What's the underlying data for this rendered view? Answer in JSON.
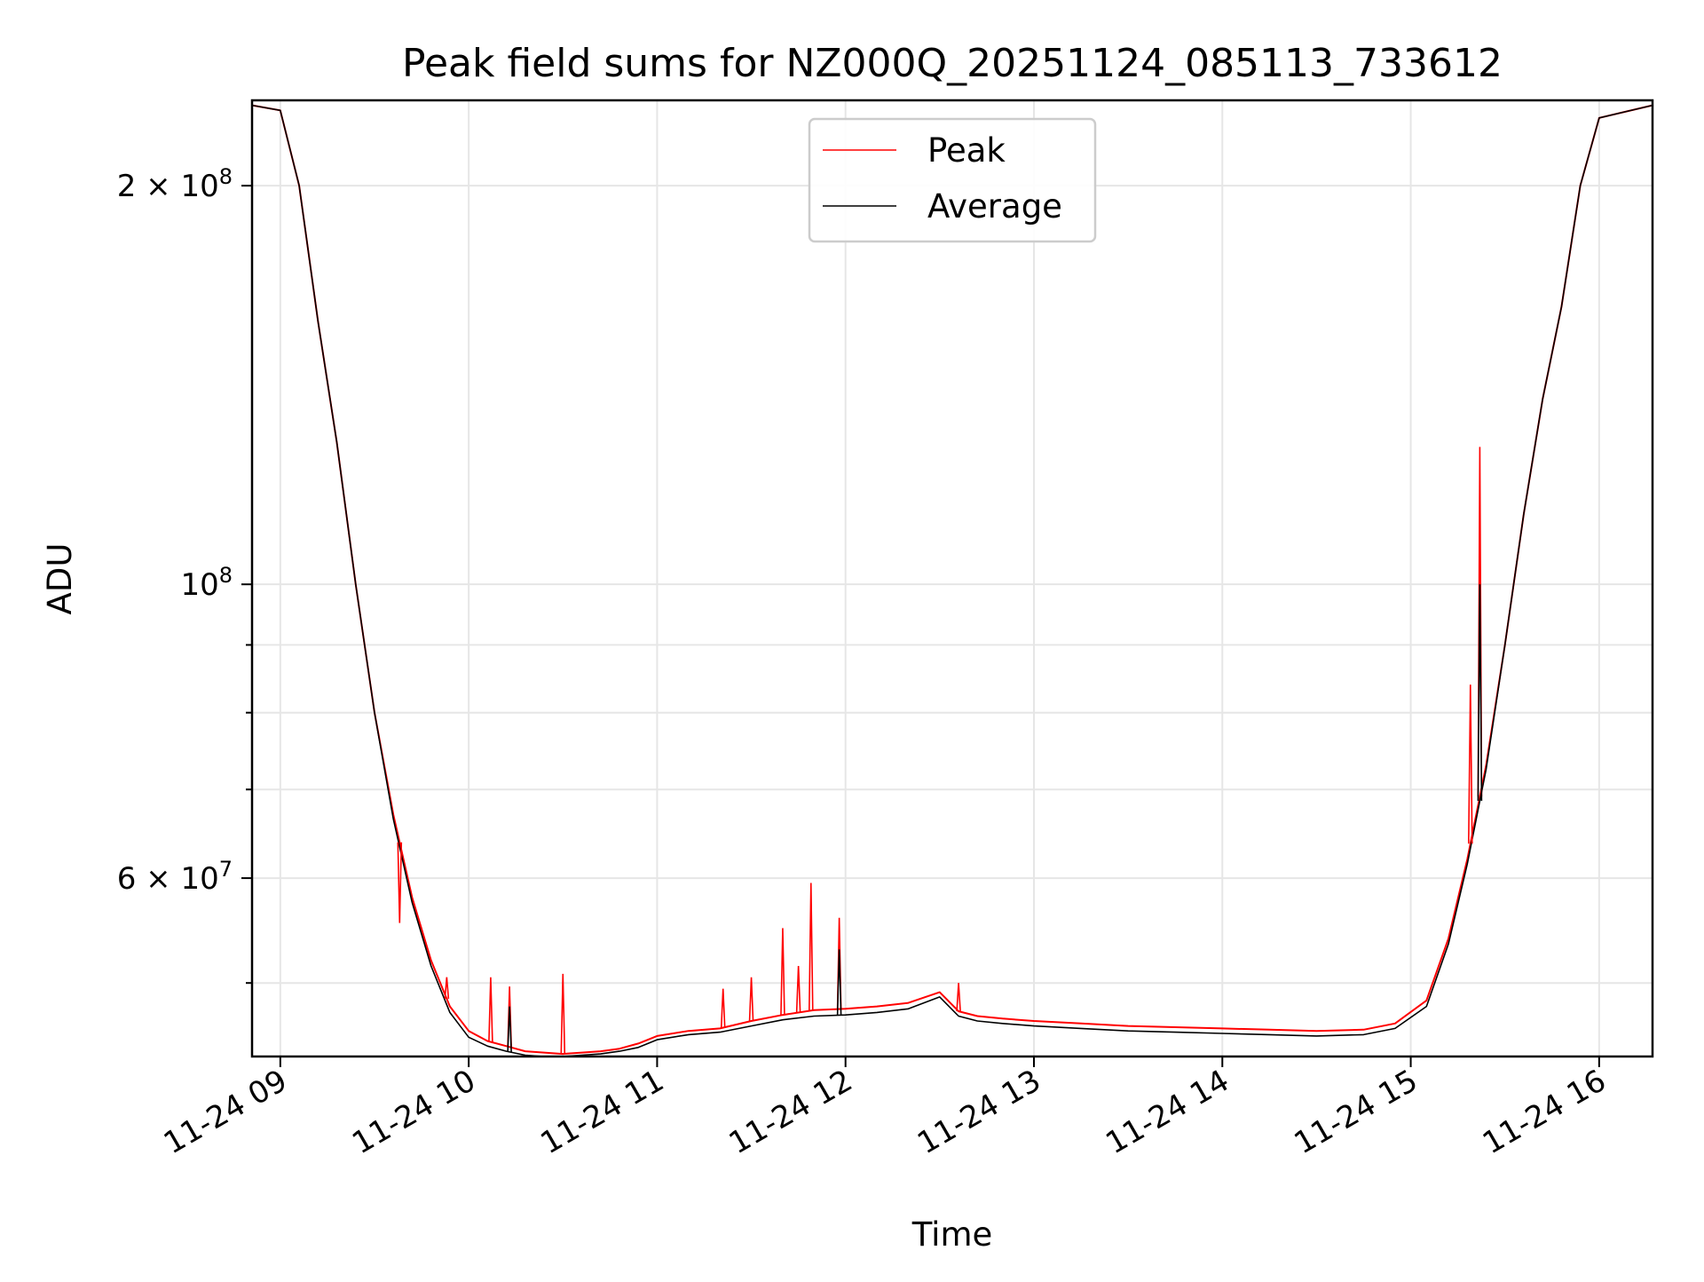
{
  "chart_data": {
    "type": "line",
    "title": "Peak field sums for NZ000Q_20251124_085113_733612",
    "xlabel": "Time",
    "ylabel": "ADU",
    "yscale": "log",
    "grid": true,
    "legend_position": "top-center",
    "xlim": [
      "2025-11-24 08:51",
      "2025-11-24 16:17"
    ],
    "ylim": [
      44000000,
      232000000
    ],
    "x_ticks": [
      {
        "value": "2025-11-24 09:00",
        "label": "11-24 09"
      },
      {
        "value": "2025-11-24 10:00",
        "label": "11-24 10"
      },
      {
        "value": "2025-11-24 11:00",
        "label": "11-24 11"
      },
      {
        "value": "2025-11-24 12:00",
        "label": "11-24 12"
      },
      {
        "value": "2025-11-24 13:00",
        "label": "11-24 13"
      },
      {
        "value": "2025-11-24 14:00",
        "label": "11-24 14"
      },
      {
        "value": "2025-11-24 15:00",
        "label": "11-24 15"
      },
      {
        "value": "2025-11-24 16:00",
        "label": "11-24 16"
      }
    ],
    "y_major_ticks": [
      {
        "value": 60000000,
        "mantissa": "6",
        "exponent": "7"
      },
      {
        "value": 100000000,
        "mantissa": "",
        "exponent": "8"
      },
      {
        "value": 200000000,
        "mantissa": "2",
        "exponent": "8"
      }
    ],
    "y_minor_ticks": [
      50000000,
      70000000,
      80000000,
      90000000
    ],
    "series": [
      {
        "name": "Peak",
        "color": "#ff0000",
        "x": [
          "2025-11-24 08:51",
          "2025-11-24 09:00",
          "2025-11-24 09:06",
          "2025-11-24 09:12",
          "2025-11-24 09:18",
          "2025-11-24 09:24",
          "2025-11-24 09:30",
          "2025-11-24 09:36",
          "2025-11-24 09:42",
          "2025-11-24 09:48",
          "2025-11-24 09:54",
          "2025-11-24 10:00",
          "2025-11-24 10:06",
          "2025-11-24 10:12",
          "2025-11-24 10:18",
          "2025-11-24 10:24",
          "2025-11-24 10:30",
          "2025-11-24 10:36",
          "2025-11-24 10:42",
          "2025-11-24 10:48",
          "2025-11-24 10:54",
          "2025-11-24 11:00",
          "2025-11-24 11:10",
          "2025-11-24 11:20",
          "2025-11-24 11:30",
          "2025-11-24 11:40",
          "2025-11-24 11:50",
          "2025-11-24 12:00",
          "2025-11-24 12:10",
          "2025-11-24 12:20",
          "2025-11-24 12:30",
          "2025-11-24 12:36",
          "2025-11-24 12:42",
          "2025-11-24 12:50",
          "2025-11-24 13:00",
          "2025-11-24 13:15",
          "2025-11-24 13:30",
          "2025-11-24 13:45",
          "2025-11-24 14:00",
          "2025-11-24 14:15",
          "2025-11-24 14:30",
          "2025-11-24 14:45",
          "2025-11-24 14:55",
          "2025-11-24 15:05",
          "2025-11-24 15:12",
          "2025-11-24 15:18",
          "2025-11-24 15:24",
          "2025-11-24 15:30",
          "2025-11-24 15:36",
          "2025-11-24 15:42",
          "2025-11-24 15:48",
          "2025-11-24 15:54",
          "2025-11-24 16:00",
          "2025-11-24 16:17"
        ],
        "y": [
          230000000,
          228000000,
          200000000,
          158000000,
          128000000,
          100000000,
          80000000,
          67000000,
          58000000,
          52000000,
          48000000,
          46000000,
          45200000,
          44800000,
          44400000,
          44300000,
          44200000,
          44300000,
          44400000,
          44600000,
          45000000,
          45600000,
          46000000,
          46200000,
          46800000,
          47300000,
          47700000,
          47800000,
          48000000,
          48300000,
          49200000,
          47600000,
          47200000,
          47000000,
          46800000,
          46600000,
          46400000,
          46300000,
          46200000,
          46100000,
          46000000,
          46100000,
          46600000,
          48500000,
          54000000,
          62000000,
          73000000,
          90000000,
          113000000,
          138000000,
          162000000,
          200000000,
          225000000,
          230000000
        ]
      },
      {
        "name": "Average",
        "color": "#000000",
        "x": [
          "2025-11-24 08:51",
          "2025-11-24 09:00",
          "2025-11-24 09:06",
          "2025-11-24 09:12",
          "2025-11-24 09:18",
          "2025-11-24 09:24",
          "2025-11-24 09:30",
          "2025-11-24 09:36",
          "2025-11-24 09:42",
          "2025-11-24 09:48",
          "2025-11-24 09:54",
          "2025-11-24 10:00",
          "2025-11-24 10:06",
          "2025-11-24 10:12",
          "2025-11-24 10:18",
          "2025-11-24 10:24",
          "2025-11-24 10:30",
          "2025-11-24 10:36",
          "2025-11-24 10:42",
          "2025-11-24 10:48",
          "2025-11-24 10:54",
          "2025-11-24 11:00",
          "2025-11-24 11:10",
          "2025-11-24 11:20",
          "2025-11-24 11:30",
          "2025-11-24 11:40",
          "2025-11-24 11:50",
          "2025-11-24 12:00",
          "2025-11-24 12:10",
          "2025-11-24 12:20",
          "2025-11-24 12:30",
          "2025-11-24 12:36",
          "2025-11-24 12:42",
          "2025-11-24 12:50",
          "2025-11-24 13:00",
          "2025-11-24 13:15",
          "2025-11-24 13:30",
          "2025-11-24 13:45",
          "2025-11-24 14:00",
          "2025-11-24 14:15",
          "2025-11-24 14:30",
          "2025-11-24 14:45",
          "2025-11-24 14:55",
          "2025-11-24 15:05",
          "2025-11-24 15:12",
          "2025-11-24 15:18",
          "2025-11-24 15:24",
          "2025-11-24 15:30",
          "2025-11-24 15:36",
          "2025-11-24 15:42",
          "2025-11-24 15:48",
          "2025-11-24 15:54",
          "2025-11-24 16:00",
          "2025-11-24 16:17"
        ],
        "y": [
          230000000,
          228000000,
          200000000,
          158000000,
          128000000,
          100000000,
          80000000,
          66500000,
          57500000,
          51500000,
          47500000,
          45500000,
          44800000,
          44400000,
          44100000,
          44000000,
          44000000,
          44100000,
          44200000,
          44400000,
          44700000,
          45300000,
          45700000,
          45900000,
          46400000,
          46900000,
          47200000,
          47300000,
          47500000,
          47800000,
          48800000,
          47200000,
          46800000,
          46600000,
          46400000,
          46200000,
          46000000,
          45900000,
          45800000,
          45700000,
          45600000,
          45700000,
          46200000,
          48000000,
          53500000,
          61500000,
          72500000,
          90000000,
          113000000,
          138000000,
          162000000,
          200000000,
          225000000,
          230000000
        ]
      }
    ],
    "spikes": [
      {
        "series": "Peak",
        "x": "2025-11-24 09:38",
        "y": 55500000
      },
      {
        "series": "Peak",
        "x": "2025-11-24 09:53",
        "y": 50500000
      },
      {
        "series": "Peak",
        "x": "2025-11-24 10:07",
        "y": 50500000
      },
      {
        "series": "Peak",
        "x": "2025-11-24 10:13",
        "y": 49700000
      },
      {
        "series": "Peak",
        "x": "2025-11-24 10:30",
        "y": 50800000
      },
      {
        "series": "Peak",
        "x": "2025-11-24 11:21",
        "y": 49500000
      },
      {
        "series": "Peak",
        "x": "2025-11-24 11:30",
        "y": 50500000
      },
      {
        "series": "Peak",
        "x": "2025-11-24 11:40",
        "y": 55000000
      },
      {
        "series": "Peak",
        "x": "2025-11-24 11:45",
        "y": 51500000
      },
      {
        "series": "Peak",
        "x": "2025-11-24 11:49",
        "y": 59500000
      },
      {
        "series": "Peak",
        "x": "2025-11-24 11:58",
        "y": 56000000
      },
      {
        "series": "Peak",
        "x": "2025-11-24 12:36",
        "y": 50000000
      },
      {
        "series": "Peak",
        "x": "2025-11-24 15:19",
        "y": 84000000
      },
      {
        "series": "Peak",
        "x": "2025-11-24 15:22",
        "y": 127000000
      },
      {
        "series": "Average",
        "x": "2025-11-24 10:13",
        "y": 48000000
      },
      {
        "series": "Average",
        "x": "2025-11-24 11:58",
        "y": 53000000
      },
      {
        "series": "Average",
        "x": "2025-11-24 15:22",
        "y": 100000000
      }
    ]
  }
}
